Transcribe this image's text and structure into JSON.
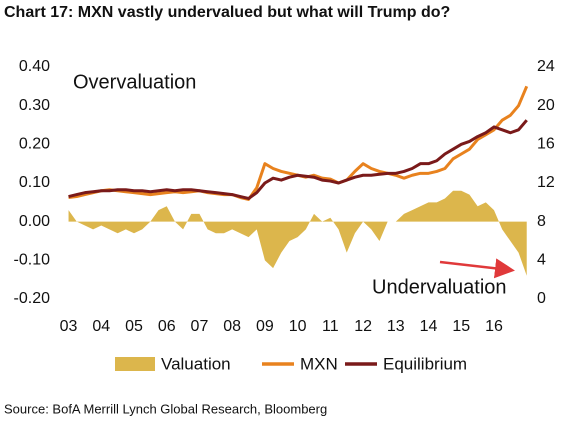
{
  "chart_data": {
    "type": "line",
    "title": "Chart 17: MXN vastly undervalued but what will Trump do?",
    "source": "Source: BofA Merrill Lynch Global Research, Bloomberg",
    "annotations": [
      "Overvaluation",
      "Undervaluation"
    ],
    "x": [
      2003,
      2003.25,
      2003.5,
      2003.75,
      2004,
      2004.25,
      2004.5,
      2004.75,
      2005,
      2005.25,
      2005.5,
      2005.75,
      2006,
      2006.25,
      2006.5,
      2006.75,
      2007,
      2007.25,
      2007.5,
      2007.75,
      2008,
      2008.25,
      2008.5,
      2008.75,
      2009,
      2009.25,
      2009.5,
      2009.75,
      2010,
      2010.25,
      2010.5,
      2010.75,
      2011,
      2011.25,
      2011.5,
      2011.75,
      2012,
      2012.25,
      2012.5,
      2012.75,
      2013,
      2013.25,
      2013.5,
      2013.75,
      2014,
      2014.25,
      2014.5,
      2014.75,
      2015,
      2015.25,
      2015.5,
      2015.75,
      2016,
      2016.25,
      2016.5,
      2016.75,
      2017
    ],
    "series": [
      {
        "name": "Valuation",
        "type": "area",
        "color": "#dcb64c",
        "axis": "y",
        "values": [
          0.03,
          0.0,
          -0.01,
          -0.02,
          -0.01,
          -0.02,
          -0.03,
          -0.02,
          -0.03,
          -0.02,
          0.0,
          0.03,
          0.04,
          0.0,
          -0.02,
          0.02,
          0.02,
          -0.02,
          -0.03,
          -0.03,
          -0.02,
          -0.03,
          -0.04,
          -0.02,
          -0.1,
          -0.12,
          -0.08,
          -0.05,
          -0.04,
          -0.02,
          0.02,
          0.0,
          0.01,
          -0.02,
          -0.08,
          -0.03,
          0.0,
          -0.02,
          -0.05,
          0.0,
          0.0,
          0.02,
          0.03,
          0.04,
          0.05,
          0.05,
          0.06,
          0.08,
          0.08,
          0.07,
          0.04,
          0.05,
          0.03,
          -0.02,
          -0.05,
          -0.08,
          -0.14
        ]
      },
      {
        "name": "MXN",
        "type": "line",
        "color": "#e8821e",
        "axis": "y2",
        "values": [
          10.5,
          10.6,
          10.8,
          11.0,
          11.2,
          11.3,
          11.2,
          11.1,
          11.0,
          10.9,
          10.8,
          10.9,
          11.0,
          11.1,
          11.0,
          11.1,
          11.2,
          11.0,
          10.9,
          10.8,
          10.8,
          10.5,
          10.3,
          11.5,
          14.0,
          13.5,
          13.2,
          13.0,
          12.8,
          12.6,
          12.8,
          12.5,
          12.4,
          12.0,
          12.3,
          13.2,
          14.0,
          13.5,
          13.2,
          13.0,
          12.8,
          12.5,
          12.8,
          13.0,
          13.0,
          13.2,
          13.5,
          14.5,
          15.0,
          15.5,
          16.5,
          17.0,
          17.5,
          18.5,
          19.0,
          20.0,
          22.0
        ]
      },
      {
        "name": "Equilibrium",
        "type": "line",
        "color": "#7a1a1a",
        "axis": "y2",
        "values": [
          10.6,
          10.8,
          11.0,
          11.1,
          11.2,
          11.2,
          11.3,
          11.3,
          11.2,
          11.2,
          11.1,
          11.2,
          11.3,
          11.2,
          11.3,
          11.3,
          11.2,
          11.1,
          11.0,
          10.9,
          10.8,
          10.6,
          10.4,
          11.0,
          12.0,
          12.5,
          12.3,
          12.6,
          12.8,
          12.7,
          12.6,
          12.3,
          12.2,
          12.0,
          12.3,
          12.6,
          12.8,
          12.8,
          12.9,
          13.0,
          13.0,
          13.2,
          13.5,
          14.0,
          14.0,
          14.3,
          15.0,
          15.5,
          16.0,
          16.3,
          16.8,
          17.2,
          17.8,
          17.5,
          17.2,
          17.5,
          18.5
        ]
      }
    ],
    "xlim": [
      2002.8,
      2017.1
    ],
    "xticks": [
      {
        "value": 2003,
        "label": "03"
      },
      {
        "value": 2004,
        "label": "04"
      },
      {
        "value": 2005,
        "label": "05"
      },
      {
        "value": 2006,
        "label": "06"
      },
      {
        "value": 2007,
        "label": "07"
      },
      {
        "value": 2008,
        "label": "08"
      },
      {
        "value": 2009,
        "label": "09"
      },
      {
        "value": 2010,
        "label": "10"
      },
      {
        "value": 2011,
        "label": "11"
      },
      {
        "value": 2012,
        "label": "12"
      },
      {
        "value": 2013,
        "label": "13"
      },
      {
        "value": 2014,
        "label": "14"
      },
      {
        "value": 2015,
        "label": "15"
      },
      {
        "value": 2016,
        "label": "16"
      }
    ],
    "ylim": [
      -0.2,
      0.4
    ],
    "yticks": [
      {
        "value": 0.4,
        "label": "0.40"
      },
      {
        "value": 0.3,
        "label": "0.30"
      },
      {
        "value": 0.2,
        "label": "0.20"
      },
      {
        "value": 0.1,
        "label": "0.10"
      },
      {
        "value": 0,
        "label": "0.00"
      },
      {
        "value": -0.1,
        "label": "-0.10"
      },
      {
        "value": -0.2,
        "label": "-0.20"
      }
    ],
    "y2lim": [
      0,
      24
    ],
    "y2ticks": [
      24,
      20,
      16,
      12,
      8,
      4,
      0
    ],
    "legend": "bottom"
  }
}
